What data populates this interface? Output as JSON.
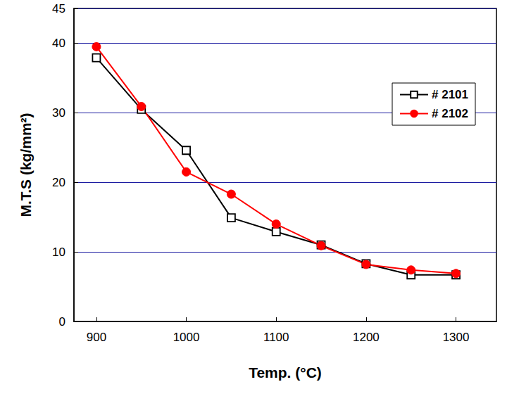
{
  "chart_data": {
    "type": "line",
    "x_label": "Temp. (°C)",
    "y_label": "M.T.S (kg/mm²)",
    "x": [
      900,
      950,
      1000,
      1050,
      1100,
      1150,
      1200,
      1250,
      1300
    ],
    "series": [
      {
        "name": "# 2101",
        "color": "#000000",
        "marker": "open_square",
        "values": [
          37.9,
          30.5,
          24.6,
          14.9,
          12.9,
          11.0,
          8.3,
          6.7,
          6.7
        ]
      },
      {
        "name": "# 2102",
        "color": "#ff0000",
        "marker": "circle",
        "values": [
          39.5,
          30.9,
          21.5,
          18.3,
          14.0,
          10.9,
          8.2,
          7.4,
          6.9
        ]
      }
    ],
    "xlim": [
      875,
      1345
    ],
    "xticks": [
      900,
      1000,
      1100,
      1200,
      1300
    ],
    "ylim": [
      0,
      45
    ],
    "yticks": [
      0,
      10,
      20,
      30,
      40
    ],
    "grid": true,
    "legend": "upper right"
  }
}
